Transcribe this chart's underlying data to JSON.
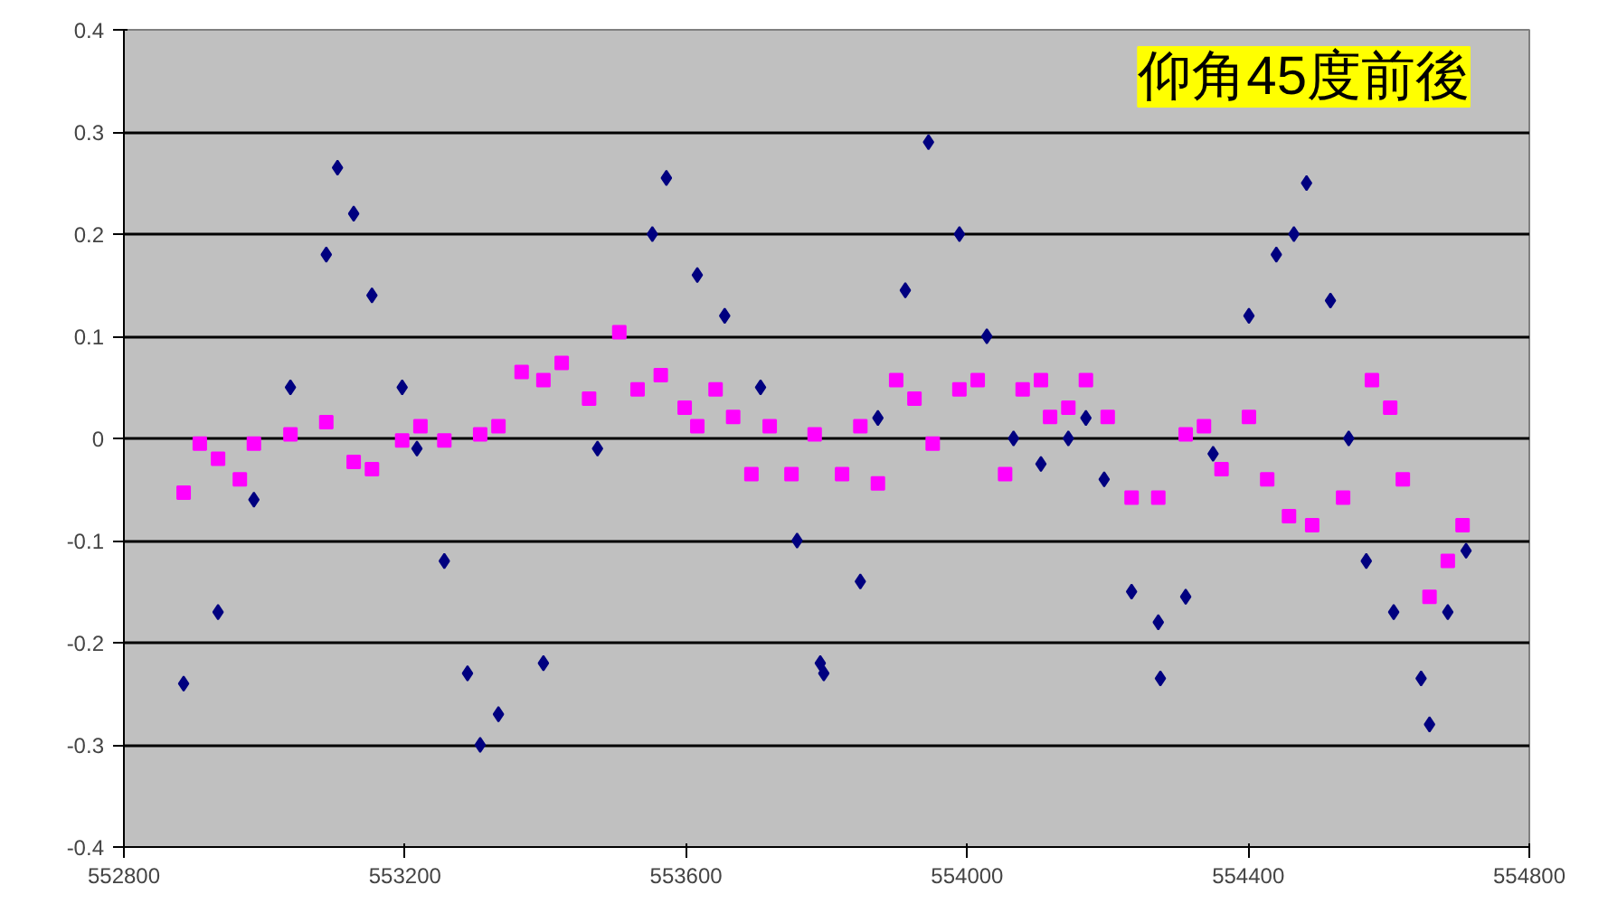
{
  "chart_data": {
    "type": "scatter",
    "title": "仰角45度前後",
    "xlim": [
      552800,
      554800
    ],
    "ylim": [
      -0.4,
      0.4
    ],
    "xticks": [
      552800,
      553200,
      553600,
      554000,
      554400,
      554800
    ],
    "yticks": [
      -0.4,
      -0.3,
      -0.2,
      -0.1,
      0,
      0.1,
      0.2,
      0.3,
      0.4
    ],
    "grid": "y",
    "series": [
      {
        "color": "#000080",
        "marker": "diamond",
        "x": [
          552885,
          552934,
          552985,
          553037,
          553088,
          553104,
          553127,
          553153,
          553196,
          553217,
          553256,
          553289,
          553307,
          553333,
          553397,
          553474,
          553552,
          553572,
          553616,
          553655,
          553706,
          553758,
          553791,
          553796,
          553848,
          553873,
          553912,
          553945,
          553989,
          554028,
          554066,
          554105,
          554144,
          554169,
          554195,
          554234,
          554272,
          554275,
          554311,
          554350,
          554401,
          554440,
          554465,
          554483,
          554517,
          554543,
          554568,
          554607,
          554646,
          554658,
          554684,
          554710
        ],
        "values": [
          -0.24,
          -0.17,
          -0.06,
          0.05,
          0.18,
          0.265,
          0.22,
          0.14,
          0.05,
          -0.01,
          -0.12,
          -0.23,
          -0.3,
          -0.27,
          -0.22,
          -0.01,
          0.2,
          0.255,
          0.16,
          0.12,
          0.05,
          -0.1,
          -0.22,
          -0.23,
          -0.14,
          0.02,
          0.145,
          0.29,
          0.2,
          0.1,
          0.0,
          -0.025,
          0.0,
          0.02,
          -0.04,
          -0.15,
          -0.18,
          -0.235,
          -0.155,
          -0.015,
          0.12,
          0.18,
          0.2,
          0.25,
          0.135,
          0.0,
          -0.12,
          -0.17,
          -0.235,
          -0.28,
          -0.17,
          -0.11
        ]
      },
      {
        "color": "#ff00ff",
        "marker": "square",
        "x": [
          552885,
          552908,
          552934,
          552965,
          552985,
          553037,
          553088,
          553127,
          553153,
          553196,
          553222,
          553256,
          553307,
          553333,
          553366,
          553397,
          553423,
          553462,
          553505,
          553531,
          553564,
          553598,
          553616,
          553642,
          553667,
          553693,
          553719,
          553750,
          553783,
          553822,
          553848,
          553873,
          553899,
          553925,
          553951,
          553989,
          554015,
          554054,
          554079,
          554105,
          554118,
          554144,
          554169,
          554200,
          554234,
          554272,
          554311,
          554337,
          554362,
          554401,
          554427,
          554458,
          554491,
          554535,
          554576,
          554602,
          554620,
          554658,
          554684,
          554705
        ],
        "values": [
          -0.053,
          -0.005,
          -0.02,
          -0.04,
          -0.005,
          0.004,
          0.016,
          -0.023,
          -0.03,
          -0.002,
          0.012,
          -0.002,
          0.004,
          0.012,
          0.065,
          0.057,
          0.074,
          0.039,
          0.104,
          0.048,
          0.062,
          0.03,
          0.012,
          0.048,
          0.021,
          -0.035,
          0.012,
          -0.035,
          0.004,
          -0.035,
          0.012,
          -0.044,
          0.057,
          0.039,
          -0.005,
          0.048,
          0.057,
          -0.035,
          0.048,
          0.057,
          0.021,
          0.03,
          0.057,
          0.021,
          -0.058,
          -0.058,
          0.004,
          0.012,
          -0.03,
          0.021,
          -0.04,
          -0.076,
          -0.085,
          -0.058,
          0.057,
          0.03,
          -0.04,
          -0.155,
          -0.12,
          -0.085
        ]
      }
    ]
  }
}
